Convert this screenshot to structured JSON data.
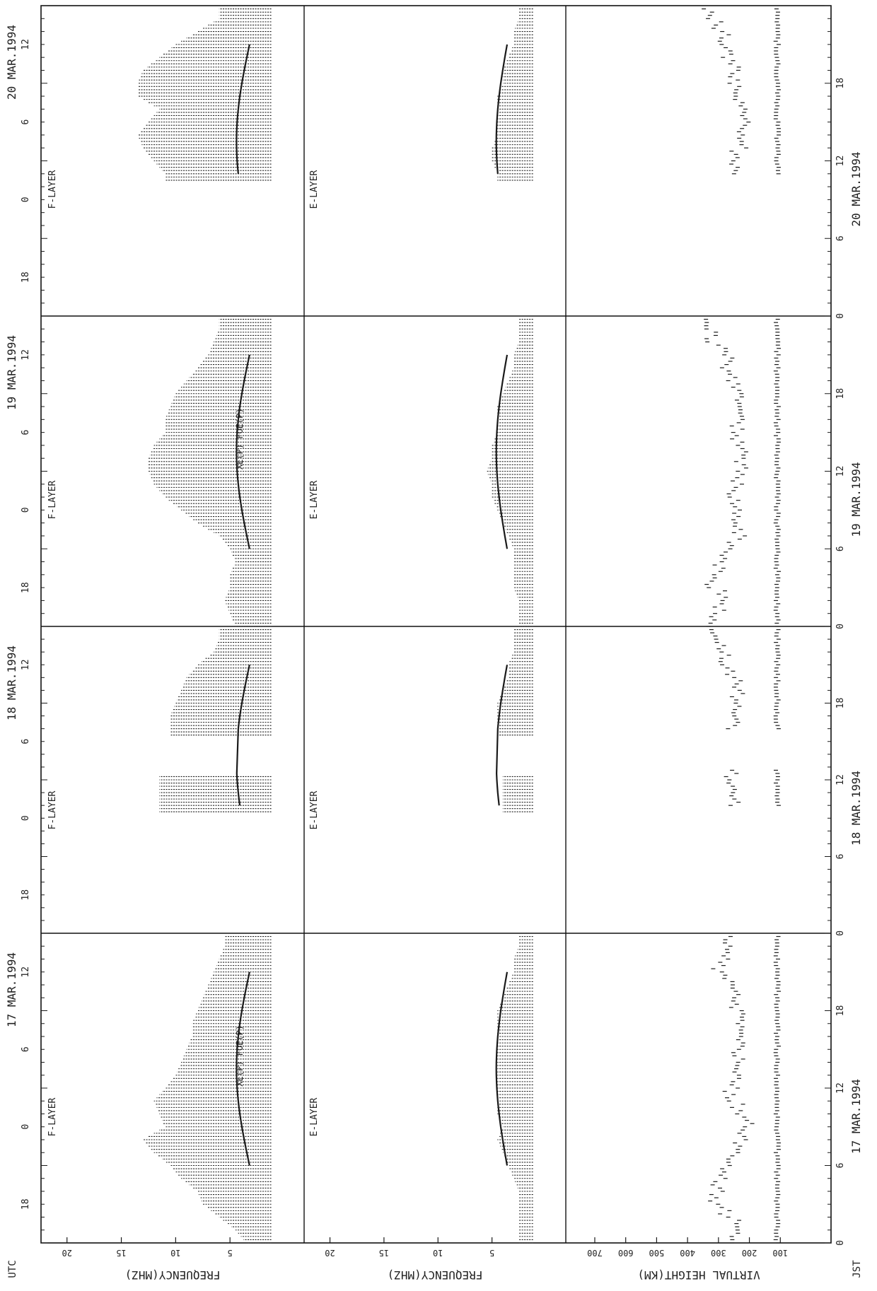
{
  "colors": {
    "ink": "#1a1a1a",
    "paper": "#ffffff",
    "frame": "#111111"
  },
  "labels": {
    "utc": "UTC",
    "jst": "JST",
    "freq_axis": "FREQUENCY(MHZ)",
    "height_axis": "VIRTUAL HEIGHT(KM)",
    "f_layer": "F-LAYER",
    "e_layer": "E-LAYER",
    "curve_labels_f": [
      "XE(P) ",
      "FOE(P)"
    ],
    "fo_f2": "FOF2"
  },
  "chart_data": {
    "type": "scatter",
    "description_orientation": "page rotated 90 degrees; time runs bottom-to-top",
    "days": [
      "17 MAR.1994",
      "18 MAR.1994",
      "19 MAR.1994",
      "20 MAR.1994"
    ],
    "time_ticks_utc": [
      "18",
      "0",
      "6",
      "12"
    ],
    "time_ticks_jst": [
      "0",
      "6",
      "12",
      "18"
    ],
    "panels": [
      {
        "id": "f-layer",
        "label": "F-LAYER",
        "ylabel": "FREQUENCY(MHZ)",
        "ylim": [
          0,
          22
        ],
        "yticks": [
          5,
          10,
          15,
          20
        ],
        "series": [
          {
            "day": "17 MAR.1994",
            "max_freq_by_hour": [
              3.5,
              4.5,
              6,
              7.5,
              8,
              9.5,
              10.5,
              12,
              13,
              11,
              11.5,
              12,
              11,
              10,
              9.5,
              9,
              8.5,
              8.5,
              8,
              7.5,
              7,
              6.5,
              6,
              5.5
            ]
          },
          {
            "day": "18 MAR.1994",
            "max_freq_by_hour": [
              0,
              0,
              0,
              0,
              0,
              0,
              0,
              0,
              0,
              0,
              11.5,
              11.5,
              11.5,
              0,
              0,
              0,
              10.5,
              10.5,
              10,
              9.5,
              9,
              8,
              6.5,
              6
            ]
          },
          {
            "day": "19 MAR.1994",
            "max_freq_by_hour": [
              4.5,
              5,
              5.5,
              5,
              5,
              4.5,
              5,
              6,
              8,
              9.5,
              11,
              12,
              12.5,
              12.5,
              12,
              11,
              11,
              10.5,
              10,
              9,
              8,
              7,
              6.5,
              6
            ]
          },
          {
            "day": "20 MAR.1994",
            "max_freq_by_hour": [
              0,
              0,
              0,
              0,
              0,
              0,
              0,
              0,
              0,
              0,
              0,
              11,
              12,
              13,
              13.5,
              12.5,
              11.5,
              13.5,
              13.5,
              13,
              11.5,
              10,
              8,
              6
            ]
          }
        ]
      },
      {
        "id": "e-layer",
        "label": "E-LAYER",
        "ylabel": "FREQUENCY(MHZ)",
        "ylim": [
          0,
          22
        ],
        "yticks": [
          5,
          10,
          15,
          20
        ],
        "series": [
          {
            "day": "17 MAR.1994",
            "max_freq_by_hour": [
              2.5,
              2.5,
              2.5,
              2.5,
              2.5,
              3,
              3.5,
              4,
              4.5,
              4,
              4.5,
              4.5,
              4.5,
              4.5,
              4.5,
              4.5,
              4.5,
              4.5,
              4.5,
              4,
              3.5,
              3,
              3,
              2.5
            ]
          },
          {
            "day": "18 MAR.1994",
            "max_freq_by_hour": [
              0,
              0,
              0,
              0,
              0,
              0,
              0,
              0,
              0,
              0,
              4,
              4,
              4,
              0,
              0,
              0,
              4.5,
              4.5,
              4.5,
              4,
              3.5,
              3.5,
              3,
              3
            ]
          },
          {
            "day": "19 MAR.1994",
            "max_freq_by_hour": [
              2.5,
              2.5,
              2.5,
              3,
              3,
              3,
              3,
              3.5,
              4,
              4.5,
              5,
              5,
              5.5,
              5,
              5,
              4.5,
              4.5,
              4.5,
              4,
              3.5,
              3,
              3,
              2.5,
              2.5
            ]
          },
          {
            "day": "20 MAR.1994",
            "max_freq_by_hour": [
              0,
              0,
              0,
              0,
              0,
              0,
              0,
              0,
              0,
              0,
              0,
              4.5,
              5,
              5,
              4.5,
              4.5,
              4.5,
              4.5,
              4,
              4,
              3.5,
              3,
              3,
              2.5
            ]
          }
        ]
      },
      {
        "id": "virtual-height",
        "label": "",
        "ylabel": "VIRTUAL HEIGHT(KM)",
        "ylim": [
          0,
          780
        ],
        "yticks": [
          100,
          200,
          300,
          400,
          500,
          600,
          700
        ],
        "series": [
          {
            "day": "17 MAR.1994",
            "height_by_hour": [
              250,
              230,
              280,
              310,
              300,
              280,
              260,
              240,
              220,
              210,
              240,
              260,
              250,
              250,
              240,
              230,
              220,
              230,
              240,
              250,
              270,
              300,
              280,
              270
            ]
          },
          {
            "day": "18 MAR.1994",
            "height_by_hour": [
              0,
              0,
              0,
              0,
              0,
              0,
              0,
              0,
              0,
              0,
              250,
              250,
              260,
              0,
              0,
              0,
              250,
              240,
              240,
              240,
              260,
              280,
              300,
              320
            ]
          },
          {
            "day": "19 MAR.1994",
            "height_by_hour": [
              320,
              300,
              280,
              330,
              300,
              270,
              250,
              230,
              240,
              250,
              260,
              240,
              230,
              230,
              240,
              240,
              230,
              230,
              240,
              250,
              270,
              290,
              320,
              330
            ]
          },
          {
            "day": "20 MAR.1994",
            "height_by_hour": [
              0,
              0,
              0,
              0,
              0,
              0,
              0,
              0,
              0,
              0,
              0,
              240,
              240,
              230,
              220,
              220,
              230,
              240,
              250,
              250,
              270,
              280,
              300,
              330
            ]
          }
        ]
      }
    ]
  }
}
